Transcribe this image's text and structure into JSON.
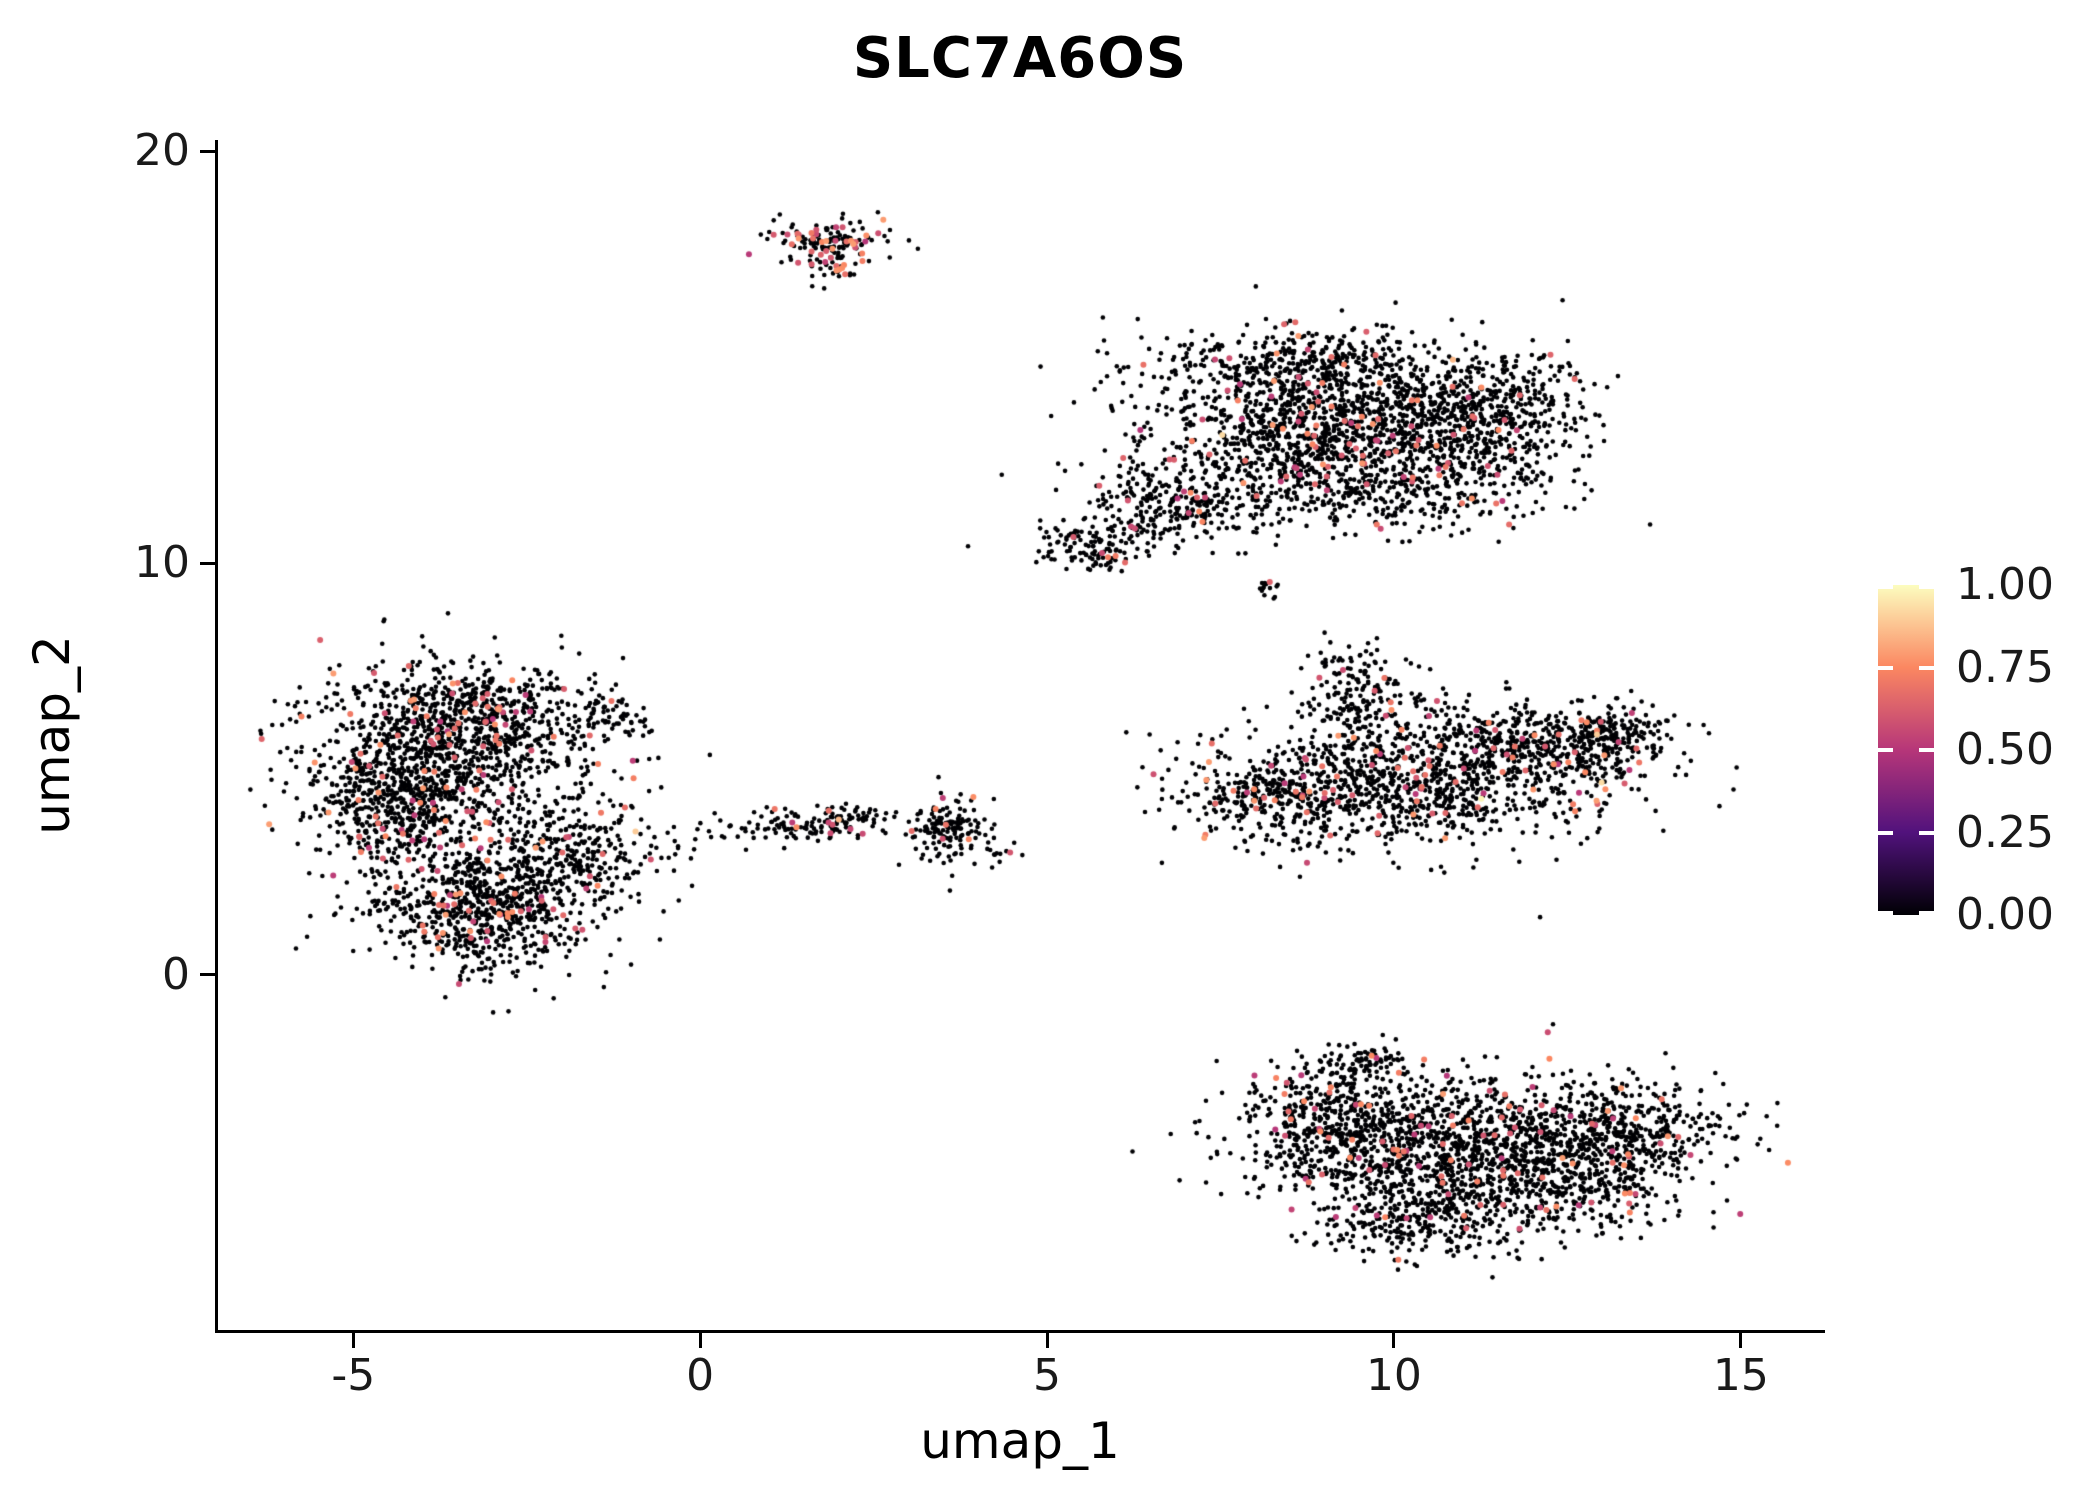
{
  "title": "SLC7A6OS",
  "chart_data": {
    "type": "scatter",
    "title": "SLC7A6OS",
    "subtitle": "",
    "xlabel": "umap_1",
    "ylabel": "umap_2",
    "xlim": [
      -6.95,
      16.17
    ],
    "ylim": [
      -8.62,
      20.27
    ],
    "grid": false,
    "x_ticks": [
      {
        "v": -5,
        "label": "-5"
      },
      {
        "v": 0,
        "label": "0"
      },
      {
        "v": 5,
        "label": "5"
      },
      {
        "v": 10,
        "label": "10"
      },
      {
        "v": 15,
        "label": "15"
      }
    ],
    "y_ticks": [
      {
        "v": 0,
        "label": "0"
      },
      {
        "v": 10,
        "label": "10"
      },
      {
        "v": 20,
        "label": "20"
      }
    ],
    "legend": {
      "position": "right-middle",
      "ticks": [
        {
          "v": 1.0,
          "label": "1.00"
        },
        {
          "v": 0.75,
          "label": "0.75"
        },
        {
          "v": 0.5,
          "label": "0.50"
        },
        {
          "v": 0.25,
          "label": "0.25"
        },
        {
          "v": 0.0,
          "label": "0.00"
        }
      ],
      "colormap": [
        {
          "pos": 0.0,
          "color": "#000004"
        },
        {
          "pos": 0.25,
          "color": "#51127C"
        },
        {
          "pos": 0.5,
          "color": "#B63679"
        },
        {
          "pos": 0.75,
          "color": "#FB8761"
        },
        {
          "pos": 1.0,
          "color": "#FCFDBF"
        }
      ]
    },
    "representation": "cluster_density_model",
    "seed": 7,
    "clusters": [
      {
        "name": "top-small",
        "expr_frac": 0.25,
        "blobs": [
          {
            "cx": 1.85,
            "cy": 17.85,
            "sx": 0.42,
            "sy": 0.26,
            "n": 140
          },
          {
            "cx": 2.0,
            "cy": 17.25,
            "sx": 0.22,
            "sy": 0.18,
            "n": 35
          }
        ]
      },
      {
        "name": "upper-right",
        "expr_frac": 0.045,
        "blobs": [
          {
            "cx": 9.2,
            "cy": 13.4,
            "sx": 1.35,
            "sy": 0.95,
            "n": 1500
          },
          {
            "cx": 8.6,
            "cy": 14.9,
            "sx": 1.0,
            "sy": 0.33,
            "n": 230
          },
          {
            "cx": 11.4,
            "cy": 13.7,
            "sx": 0.7,
            "sy": 0.8,
            "n": 420
          },
          {
            "cx": 9.8,
            "cy": 11.7,
            "sx": 1.2,
            "sy": 0.45,
            "n": 300
          },
          {
            "cx": 6.8,
            "cy": 11.4,
            "sx": 0.65,
            "sy": 0.5,
            "n": 260
          },
          {
            "cx": 5.7,
            "cy": 10.4,
            "sx": 0.4,
            "sy": 0.3,
            "n": 120
          }
        ]
      },
      {
        "name": "tiny-mid",
        "expr_frac": 0.12,
        "blobs": [
          {
            "cx": 8.15,
            "cy": 9.4,
            "sx": 0.12,
            "sy": 0.16,
            "n": 14
          }
        ]
      },
      {
        "name": "mid-right",
        "expr_frac": 0.05,
        "blobs": [
          {
            "cx": 10.2,
            "cy": 4.6,
            "sx": 1.5,
            "sy": 0.75,
            "n": 1050
          },
          {
            "cx": 12.5,
            "cy": 5.6,
            "sx": 0.8,
            "sy": 0.45,
            "n": 320
          },
          {
            "cx": 13.2,
            "cy": 5.9,
            "sx": 0.35,
            "sy": 0.28,
            "n": 90
          },
          {
            "cx": 9.5,
            "cy": 6.7,
            "sx": 0.4,
            "sy": 0.65,
            "n": 190
          },
          {
            "cx": 8.3,
            "cy": 4.3,
            "sx": 0.5,
            "sy": 0.5,
            "n": 170
          },
          {
            "cx": 11.3,
            "cy": 6.0,
            "sx": 0.9,
            "sy": 0.38,
            "n": 130
          }
        ]
      },
      {
        "name": "left-large",
        "expr_frac": 0.055,
        "blobs": [
          {
            "cx": -3.8,
            "cy": 5.4,
            "sx": 0.95,
            "sy": 1.05,
            "n": 950
          },
          {
            "cx": -4.4,
            "cy": 4.1,
            "sx": 0.55,
            "sy": 0.85,
            "n": 380
          },
          {
            "cx": -2.9,
            "cy": 6.4,
            "sx": 0.65,
            "sy": 0.55,
            "n": 330
          },
          {
            "cx": -3.1,
            "cy": 1.6,
            "sx": 0.85,
            "sy": 0.75,
            "n": 780
          },
          {
            "cx": -1.9,
            "cy": 2.9,
            "sx": 0.55,
            "sy": 0.55,
            "n": 240
          },
          {
            "cx": -1.2,
            "cy": 6.3,
            "sx": 0.28,
            "sy": 0.28,
            "n": 55
          },
          {
            "cx": -1.6,
            "cy": 4.3,
            "sx": 0.75,
            "sy": 0.7,
            "n": 70
          }
        ]
      },
      {
        "name": "bridge-sparse",
        "expr_frac": 0.0,
        "blobs": [
          {
            "cx": -0.3,
            "cy": 3.3,
            "sx": 0.7,
            "sy": 0.3,
            "n": 22
          }
        ]
      },
      {
        "name": "mid-small-band",
        "expr_frac": 0.06,
        "blobs": [
          {
            "cx": 1.4,
            "cy": 3.65,
            "sx": 0.5,
            "sy": 0.17,
            "n": 85
          },
          {
            "cx": 2.2,
            "cy": 3.75,
            "sx": 0.28,
            "sy": 0.22,
            "n": 55
          },
          {
            "cx": 3.6,
            "cy": 3.45,
            "sx": 0.28,
            "sy": 0.38,
            "n": 150
          },
          {
            "cx": 4.35,
            "cy": 2.9,
            "sx": 0.14,
            "sy": 0.14,
            "n": 10
          }
        ]
      },
      {
        "name": "bottom",
        "expr_frac": 0.045,
        "blobs": [
          {
            "cx": 10.6,
            "cy": -4.3,
            "sx": 1.25,
            "sy": 0.95,
            "n": 1250
          },
          {
            "cx": 13.0,
            "cy": -3.9,
            "sx": 0.95,
            "sy": 0.65,
            "n": 580
          },
          {
            "cx": 9.0,
            "cy": -3.4,
            "sx": 0.55,
            "sy": 0.65,
            "n": 290
          },
          {
            "cx": 10.3,
            "cy": -6.1,
            "sx": 0.8,
            "sy": 0.38,
            "n": 200
          },
          {
            "cx": 12.5,
            "cy": -5.3,
            "sx": 0.8,
            "sy": 0.45,
            "n": 230
          },
          {
            "cx": 9.6,
            "cy": -2.1,
            "sx": 0.3,
            "sy": 0.22,
            "n": 70
          }
        ]
      }
    ]
  }
}
